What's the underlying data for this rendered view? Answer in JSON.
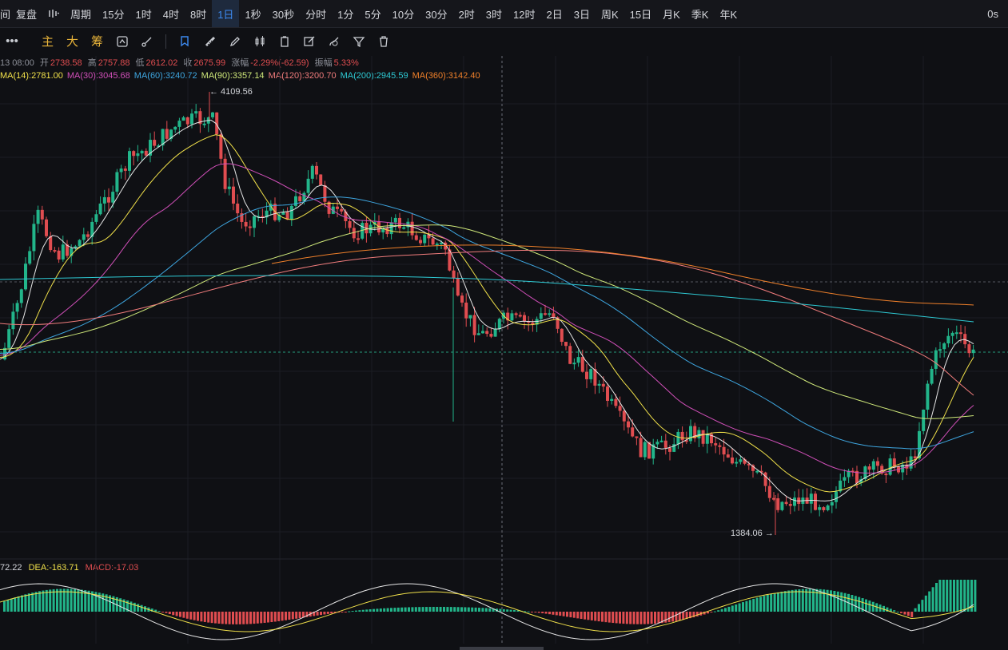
{
  "topbar": {
    "items": [
      "间",
      "复盘",
      "",
      "周期",
      "15分",
      "1时",
      "4时",
      "8时",
      "1日",
      "1秒",
      "30秒",
      "分时",
      "1分",
      "5分",
      "10分",
      "30分",
      "2时",
      "3时",
      "12时",
      "2日",
      "3日",
      "周K",
      "15日",
      "月K",
      "季K",
      "年K"
    ],
    "active_label": "1日",
    "countdown": "0s"
  },
  "toolbar": {
    "more": "•••",
    "main": "主",
    "big": "大",
    "chips": "筹",
    "icons": [
      "indicator-icon",
      "draw-icon",
      "bookmark-icon",
      "ruler-icon",
      "pen-icon",
      "candle-icon",
      "clipboard-icon",
      "edit-icon",
      "brush-icon",
      "filter-icon",
      "trash-icon"
    ]
  },
  "info": {
    "date": "13 08:00",
    "open_label": "开",
    "open": "2738.58",
    "high_label": "高",
    "high": "2757.88",
    "low_label": "低",
    "low": "2612.02",
    "close_label": "收",
    "close": "2675.99",
    "change_label": "涨幅",
    "change": "-2.29%(-62.59)",
    "amp_label": "振幅",
    "amp": "5.33%"
  },
  "ma": [
    {
      "text": "MA(14):2781.00",
      "color": "#f0e04a"
    },
    {
      "text": "MA(30):3045.68",
      "color": "#d04fb8"
    },
    {
      "text": "MA(60):3240.72",
      "color": "#3ea6e0"
    },
    {
      "text": "MA(90):3357.14",
      "color": "#cfe87a"
    },
    {
      "text": "MA(120):3200.70",
      "color": "#f07c7c"
    },
    {
      "text": "MA(200):2945.59",
      "color": "#2ec9d3"
    },
    {
      "text": "MA(360):3142.40",
      "color": "#f0802a"
    }
  ],
  "annotations": {
    "high": "← 4109.56",
    "low": "1384.06 →"
  },
  "macd": {
    "dif": "72.22",
    "dea": "DEA:-163.71",
    "macd": "MACD:-17.03"
  },
  "colors": {
    "up": "#22b58a",
    "down": "#e04d50",
    "bg": "#0f1014"
  },
  "chart_data": {
    "type": "candlestick",
    "high": 4109.56,
    "low": 1384.06
  }
}
